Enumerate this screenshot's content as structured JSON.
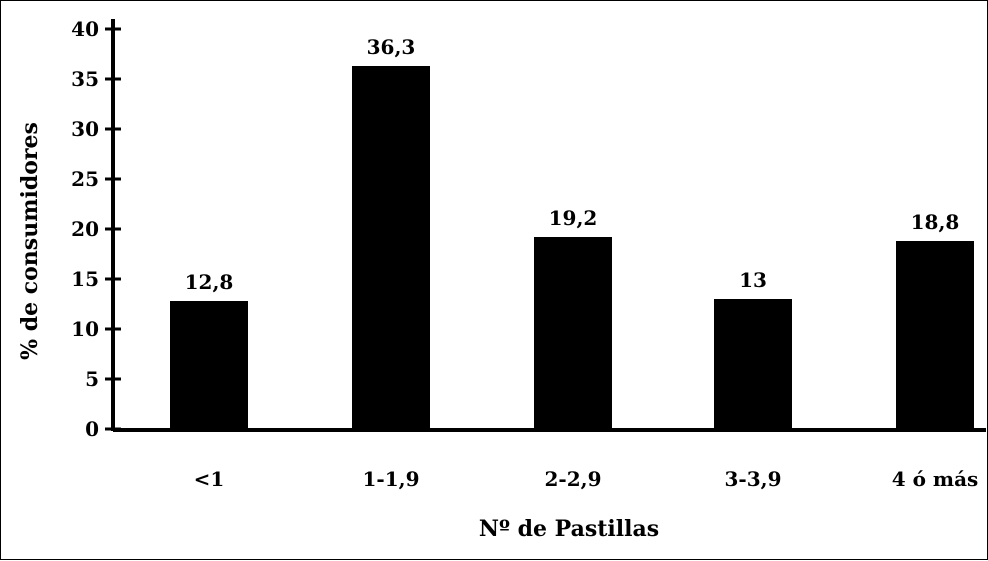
{
  "chart_data": {
    "type": "bar",
    "title": "",
    "xlabel": "Nº de Pastillas",
    "ylabel": "% de consumidores",
    "categories": [
      "<1",
      "1-1,9",
      "2-2,9",
      "3-3,9",
      "4 ó más"
    ],
    "values": [
      12.8,
      36.3,
      19.2,
      13,
      18.8
    ],
    "value_labels": [
      "12,8",
      "36,3",
      "19,2",
      "13",
      "18,8"
    ],
    "yticks": [
      0,
      5,
      10,
      15,
      20,
      25,
      30,
      35,
      40
    ],
    "ylim": [
      0,
      40
    ],
    "grid": false,
    "legend": "none",
    "bar_color": "#000000"
  }
}
